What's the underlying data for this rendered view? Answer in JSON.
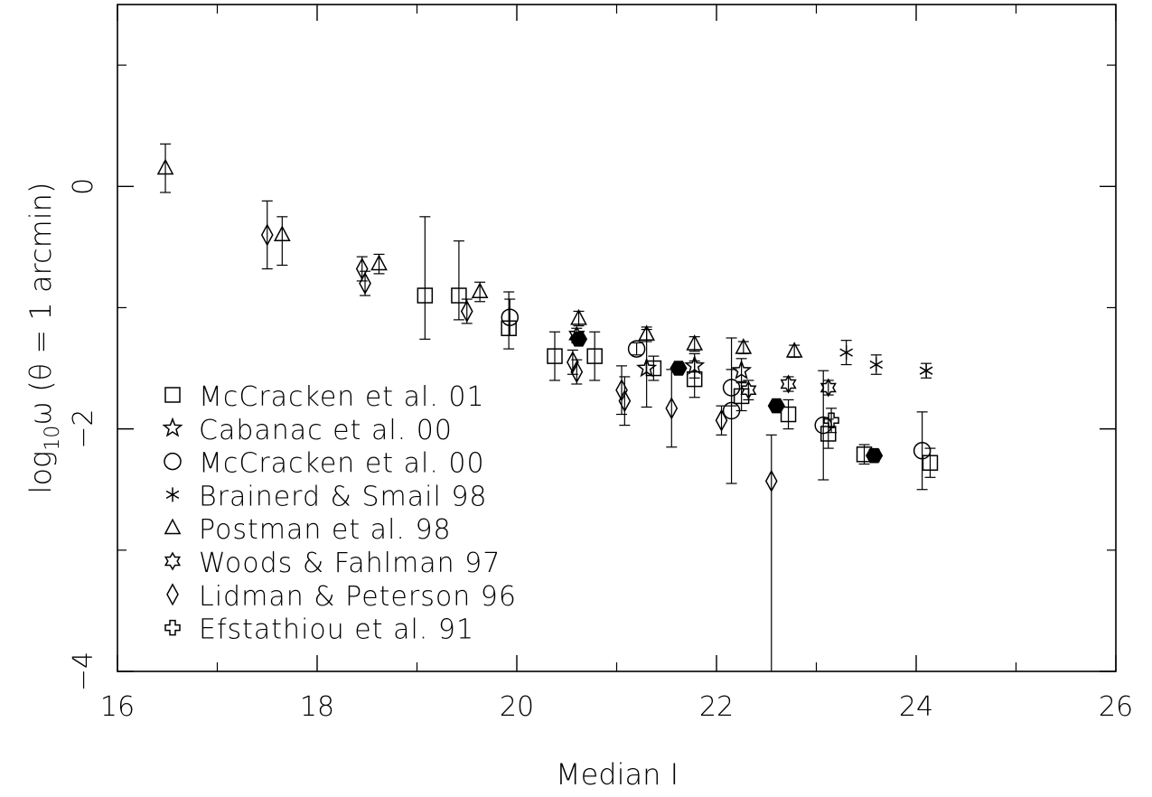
{
  "chart_data": {
    "type": "scatter",
    "title": "",
    "xlabel": "Median I",
    "ylabel_parts": {
      "pre": "log",
      "sub": "10",
      "post": "ω (θ = 1 arcmin)"
    },
    "xlim": [
      16,
      26
    ],
    "ylim": [
      -4,
      1.5
    ],
    "x_ticks": [
      {
        "v": 16,
        "label": "16"
      },
      {
        "v": 18,
        "label": "18"
      },
      {
        "v": 20,
        "label": "20"
      },
      {
        "v": 22,
        "label": "22"
      },
      {
        "v": 24,
        "label": "24"
      },
      {
        "v": 26,
        "label": "26"
      }
    ],
    "y_ticks": [
      {
        "v": 0,
        "label": "0"
      },
      {
        "v": -2,
        "label": "−2"
      },
      {
        "v": -4,
        "label": "−4"
      }
    ],
    "x_minor_ticks": [
      17,
      19,
      21,
      23,
      25
    ],
    "y_minor_ticks": [
      1,
      -1,
      -3
    ],
    "grid": false,
    "legend_position": "lower-left",
    "series": [
      {
        "name": "McCracken et al. 01",
        "marker": "square",
        "points": [
          {
            "x": 19.08,
            "y": -0.9,
            "err": [
              0.36,
              0.65
            ]
          },
          {
            "x": 19.42,
            "y": -0.9,
            "err": [
              0.2,
              0.45
            ]
          },
          {
            "x": 19.92,
            "y": -1.17,
            "err": [
              0.17,
              0.3
            ]
          },
          {
            "x": 20.38,
            "y": -1.4,
            "err": [
              0.2,
              0.2
            ]
          },
          {
            "x": 20.78,
            "y": -1.4,
            "err": [
              0.2,
              0.2
            ]
          },
          {
            "x": 21.37,
            "y": -1.5,
            "err": [
              0.1,
              0.1
            ]
          },
          {
            "x": 21.78,
            "y": -1.59,
            "err": [
              0.15,
              0.15
            ]
          },
          {
            "x": 22.25,
            "y": -1.73,
            "err": [
              0.12,
              0.12
            ]
          },
          {
            "x": 22.72,
            "y": -1.88,
            "err": [
              0.12,
              0.12
            ]
          },
          {
            "x": 23.12,
            "y": -2.04,
            "err": [
              0.12,
              0.12
            ]
          },
          {
            "x": 23.48,
            "y": -2.21,
            "err": [
              0.08,
              0.08
            ]
          },
          {
            "x": 24.14,
            "y": -2.28,
            "err": [
              0.12,
              0.12
            ]
          }
        ]
      },
      {
        "name": "Cabanac et al. 00",
        "marker": "star5",
        "points": [
          {
            "x": 21.3,
            "y": -1.5,
            "err": [
              0.32,
              0.32
            ]
          },
          {
            "x": 21.78,
            "y": -1.48,
            "err": [
              0.1,
              0.1
            ]
          },
          {
            "x": 22.25,
            "y": -1.52,
            "err": [
              0.1,
              0.1
            ]
          }
        ]
      },
      {
        "name": "McCracken et al. 00",
        "marker": "circle",
        "points": [
          {
            "x": 19.93,
            "y": -1.08,
            "err": [
              0.15,
              0.15
            ]
          },
          {
            "x": 21.2,
            "y": -1.34,
            "err": [
              0.05,
              0.05
            ]
          },
          {
            "x": 22.15,
            "y": -1.66,
            "err": [
              0.15,
              0.15
            ]
          },
          {
            "x": 22.15,
            "y": -1.85,
            "err": [
              0.6,
              0.6
            ]
          },
          {
            "x": 23.07,
            "y": -1.97,
            "err": [
              0.45,
              0.45
            ]
          },
          {
            "x": 24.06,
            "y": -2.18,
            "err": [
              0.32,
              0.32
            ]
          }
        ]
      },
      {
        "name": "Brainerd & Smail 98",
        "marker": "asterisk",
        "points": [
          {
            "x": 23.3,
            "y": -1.37,
            "err": [
              0.1,
              0.1
            ]
          },
          {
            "x": 23.6,
            "y": -1.47,
            "err": [
              0.08,
              0.08
            ]
          },
          {
            "x": 24.1,
            "y": -1.52,
            "err": [
              0.06,
              0.06
            ]
          }
        ]
      },
      {
        "name": "Postman et al. 98",
        "marker": "triangle",
        "points": [
          {
            "x": 16.48,
            "y": 0.15,
            "err": [
              0.2,
              0.2
            ]
          },
          {
            "x": 17.65,
            "y": -0.4,
            "err": [
              0.25,
              0.15
            ]
          },
          {
            "x": 18.62,
            "y": -0.64,
            "err": [
              0.08,
              0.08
            ]
          },
          {
            "x": 19.63,
            "y": -0.87,
            "err": [
              0.08,
              0.08
            ]
          },
          {
            "x": 20.62,
            "y": -1.09,
            "err": [
              0.06,
              0.06
            ]
          },
          {
            "x": 21.3,
            "y": -1.22,
            "err": [
              0.06,
              0.06
            ]
          },
          {
            "x": 21.78,
            "y": -1.3,
            "err": [
              0.06,
              0.06
            ]
          },
          {
            "x": 22.27,
            "y": -1.33,
            "err": [
              0.05,
              0.05
            ]
          },
          {
            "x": 22.78,
            "y": -1.36,
            "err": [
              0.05,
              0.05
            ]
          }
        ]
      },
      {
        "name": "Woods & Fahlman 97",
        "marker": "star6",
        "points": [
          {
            "x": 20.6,
            "y": -1.23,
            "err": [
              0.06,
              0.06
            ]
          },
          {
            "x": 22.32,
            "y": -1.68,
            "err": [
              0.08,
              0.08
            ]
          },
          {
            "x": 22.72,
            "y": -1.63,
            "err": [
              0.06,
              0.06
            ]
          },
          {
            "x": 23.12,
            "y": -1.66,
            "err": [
              0.06,
              0.06
            ]
          }
        ]
      },
      {
        "name": "Lidman & Peterson 96",
        "marker": "diamond",
        "points": [
          {
            "x": 17.5,
            "y": -0.4,
            "err": [
              0.28,
              0.28
            ]
          },
          {
            "x": 18.45,
            "y": -0.68,
            "err": [
              0.1,
              0.1
            ]
          },
          {
            "x": 18.48,
            "y": -0.8,
            "err": [
              0.1,
              0.1
            ]
          },
          {
            "x": 19.5,
            "y": -1.03,
            "err": [
              0.1,
              0.1
            ]
          },
          {
            "x": 20.56,
            "y": -1.45,
            "err": [
              0.1,
              0.1
            ]
          },
          {
            "x": 20.6,
            "y": -1.53,
            "err": [
              0.1,
              0.1
            ]
          },
          {
            "x": 21.05,
            "y": -1.68,
            "err": [
              0.2,
              0.2
            ]
          },
          {
            "x": 21.08,
            "y": -1.77,
            "err": [
              0.2,
              0.2
            ]
          },
          {
            "x": 21.55,
            "y": -1.83,
            "err": [
              0.32,
              0.32
            ]
          },
          {
            "x": 22.05,
            "y": -1.93,
            "err": [
              0.12,
              0.12
            ]
          },
          {
            "x": 22.55,
            "y": -2.43,
            "err": [
              1.57,
              0.38
            ]
          }
        ]
      },
      {
        "name": "Efstathiou et al. 91",
        "marker": "plus",
        "points": [
          {
            "x": 23.15,
            "y": -1.93,
            "err": [
              0.1,
              0.1
            ]
          }
        ]
      },
      {
        "name": "",
        "marker": "hexagon-filled",
        "points": [
          {
            "x": 20.62,
            "y": -1.26,
            "err": [
              0,
              0
            ]
          },
          {
            "x": 21.62,
            "y": -1.5,
            "err": [
              0,
              0
            ]
          },
          {
            "x": 22.6,
            "y": -1.81,
            "err": [
              0,
              0
            ]
          },
          {
            "x": 23.58,
            "y": -2.22,
            "err": [
              0.05,
              0.05
            ]
          }
        ]
      }
    ]
  }
}
